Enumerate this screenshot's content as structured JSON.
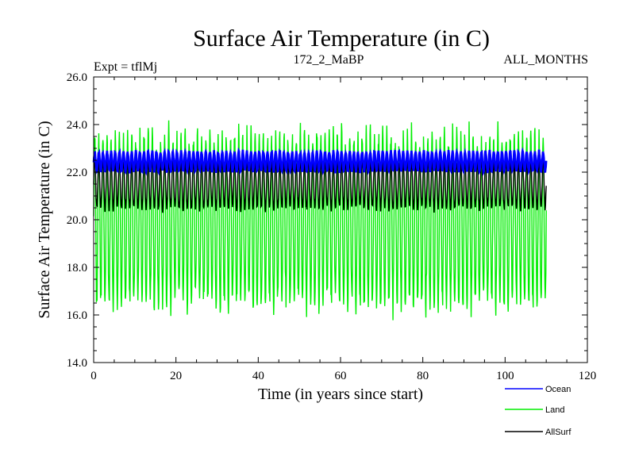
{
  "chart_data": {
    "type": "line",
    "title": "Surface Air Temperature (in C)",
    "subtitle_left": "Expt = tflMj",
    "subtitle_center": "172_2_MaBP",
    "subtitle_right": "ALL_MONTHS",
    "xlabel": "Time (in years since start)",
    "ylabel": "Surface Air Temperature (in C)",
    "xlim": [
      0,
      120
    ],
    "ylim": [
      14,
      26
    ],
    "x_ticks": [
      0,
      20,
      40,
      60,
      80,
      100,
      120
    ],
    "x_tick_labels": [
      "0",
      "20",
      "40",
      "60",
      "80",
      "100",
      "120"
    ],
    "y_ticks": [
      14,
      16,
      18,
      20,
      22,
      24,
      26
    ],
    "y_tick_labels": [
      "14.0",
      "16.0",
      "18.0",
      "20.0",
      "22.0",
      "24.0",
      "26.0"
    ],
    "data_range_years": [
      0,
      110
    ],
    "sampling": "monthly (seasonal cycle)",
    "series": [
      {
        "name": "Ocean",
        "color": "#0000ff",
        "mean": 22.4,
        "seasonal_min": 22.0,
        "seasonal_max": 22.9
      },
      {
        "name": "Land",
        "color": "#00ee00",
        "mean": 20.2,
        "seasonal_min": 16.2,
        "seasonal_max": 23.8
      },
      {
        "name": "AllSurf",
        "color": "#000000",
        "mean": 21.5,
        "seasonal_min": 20.4,
        "seasonal_max": 22.6
      }
    ],
    "legend": {
      "placement": "bottom-right",
      "items": [
        {
          "name": "Ocean",
          "color": "#0000ff"
        },
        {
          "name": "Land",
          "color": "#00ee00"
        },
        {
          "name": "AllSurf",
          "color": "#000000"
        }
      ]
    },
    "grid": false
  }
}
